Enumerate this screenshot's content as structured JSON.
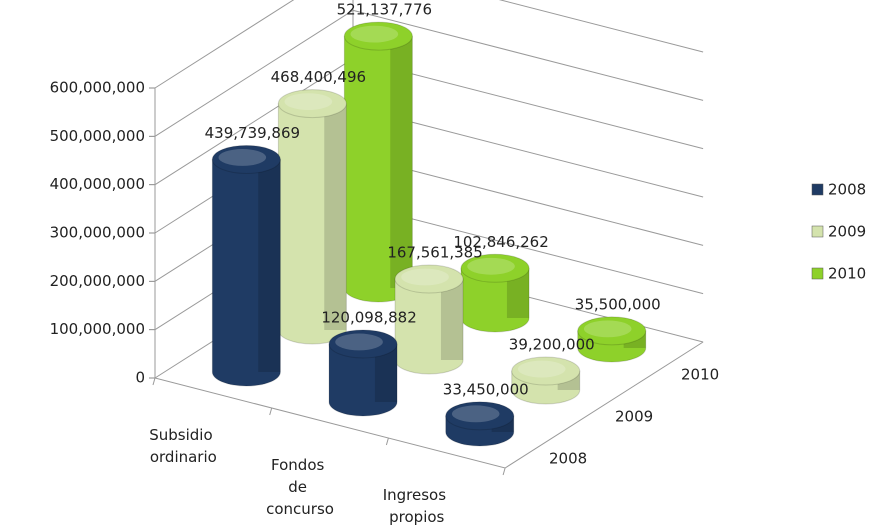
{
  "chart_data": {
    "type": "bar3d",
    "categories": [
      "Subsidio ordinario",
      "Fondos de concurso",
      "Ingresos propios"
    ],
    "series": [
      {
        "name": "2008",
        "color": "#1f3b64",
        "values": [
          439739869,
          120098882,
          33450000
        ],
        "value_labels": [
          "439,739,869",
          "120,098,882",
          "33,450,000"
        ]
      },
      {
        "name": "2009",
        "color": "#d4e3ad",
        "values": [
          468400496,
          167561385,
          39200000
        ],
        "value_labels": [
          "468,400,496",
          "167,561,385",
          "39,200,000"
        ]
      },
      {
        "name": "2010",
        "color": "#8ed12a",
        "values": [
          521137776,
          102846262,
          35500000
        ],
        "value_labels": [
          "521,137,776",
          "102,846,262",
          "35,500,000"
        ]
      }
    ],
    "ylim": [
      0,
      600000000
    ],
    "yticks": [
      0,
      {
        "value": 100000000,
        "label": "100,000,000"
      },
      {
        "value": 200000000,
        "label": "200,000,000"
      },
      {
        "value": 300000000,
        "label": "300,000,000"
      },
      {
        "value": 400000000,
        "label": "400,000,000"
      },
      {
        "value": 500000000,
        "label": "500,000,000"
      },
      {
        "value": 600000000,
        "label": "600,000,000"
      }
    ],
    "grid": true,
    "legend": "right"
  }
}
